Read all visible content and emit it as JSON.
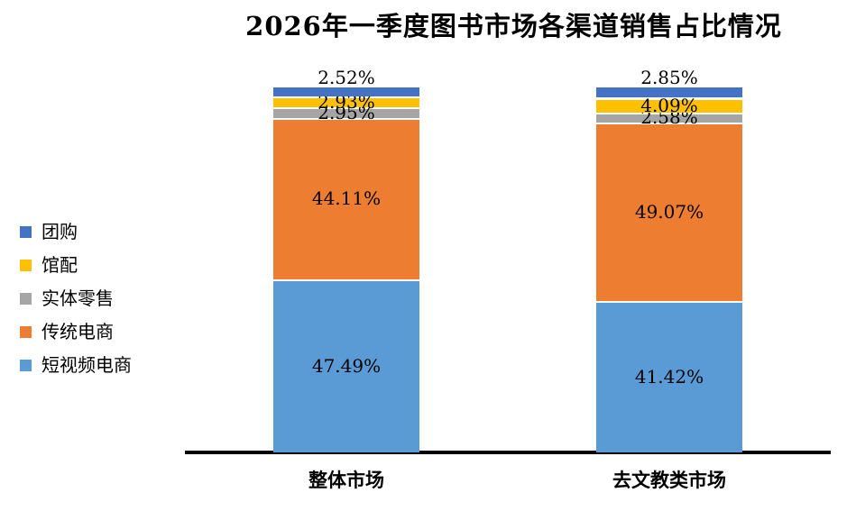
{
  "chart_data": {
    "type": "bar",
    "subtype": "stacked-column",
    "title": "2026年一季度图书市场各渠道销售占比情况",
    "categories": [
      "整体市场",
      "去文教类市场"
    ],
    "series": [
      {
        "name": "团购",
        "color": "#4472C4",
        "values": [
          2.52,
          2.85
        ],
        "labels": [
          "2.52%",
          "2.85%"
        ]
      },
      {
        "name": "馆配",
        "color": "#FFC000",
        "values": [
          2.93,
          4.09
        ],
        "labels": [
          "2.93%",
          "4.09%"
        ]
      },
      {
        "name": "实体零售",
        "color": "#A5A5A5",
        "values": [
          2.95,
          2.58
        ],
        "labels": [
          "2.95%",
          "2.58%"
        ]
      },
      {
        "name": "传统电商",
        "color": "#ED7D31",
        "values": [
          44.11,
          49.07
        ],
        "labels": [
          "44.11%",
          "49.07%"
        ]
      },
      {
        "name": "短视频电商",
        "color": "#5B9BD5",
        "values": [
          47.49,
          41.42
        ],
        "labels": [
          "47.49%",
          "41.42%"
        ]
      }
    ],
    "series_order_note": "series listed top-to-bottom of stack; legend order matches",
    "stack_order_bottom_to_top": [
      "短视频电商",
      "传统电商",
      "实体零售",
      "馆配",
      "团购"
    ],
    "value_unit": "%",
    "ylim": [
      0,
      100
    ],
    "grid": false,
    "legend_position": "left",
    "axis_line_color": "#000000",
    "background_color": "#FFFFFF",
    "label_color": "#000000"
  }
}
